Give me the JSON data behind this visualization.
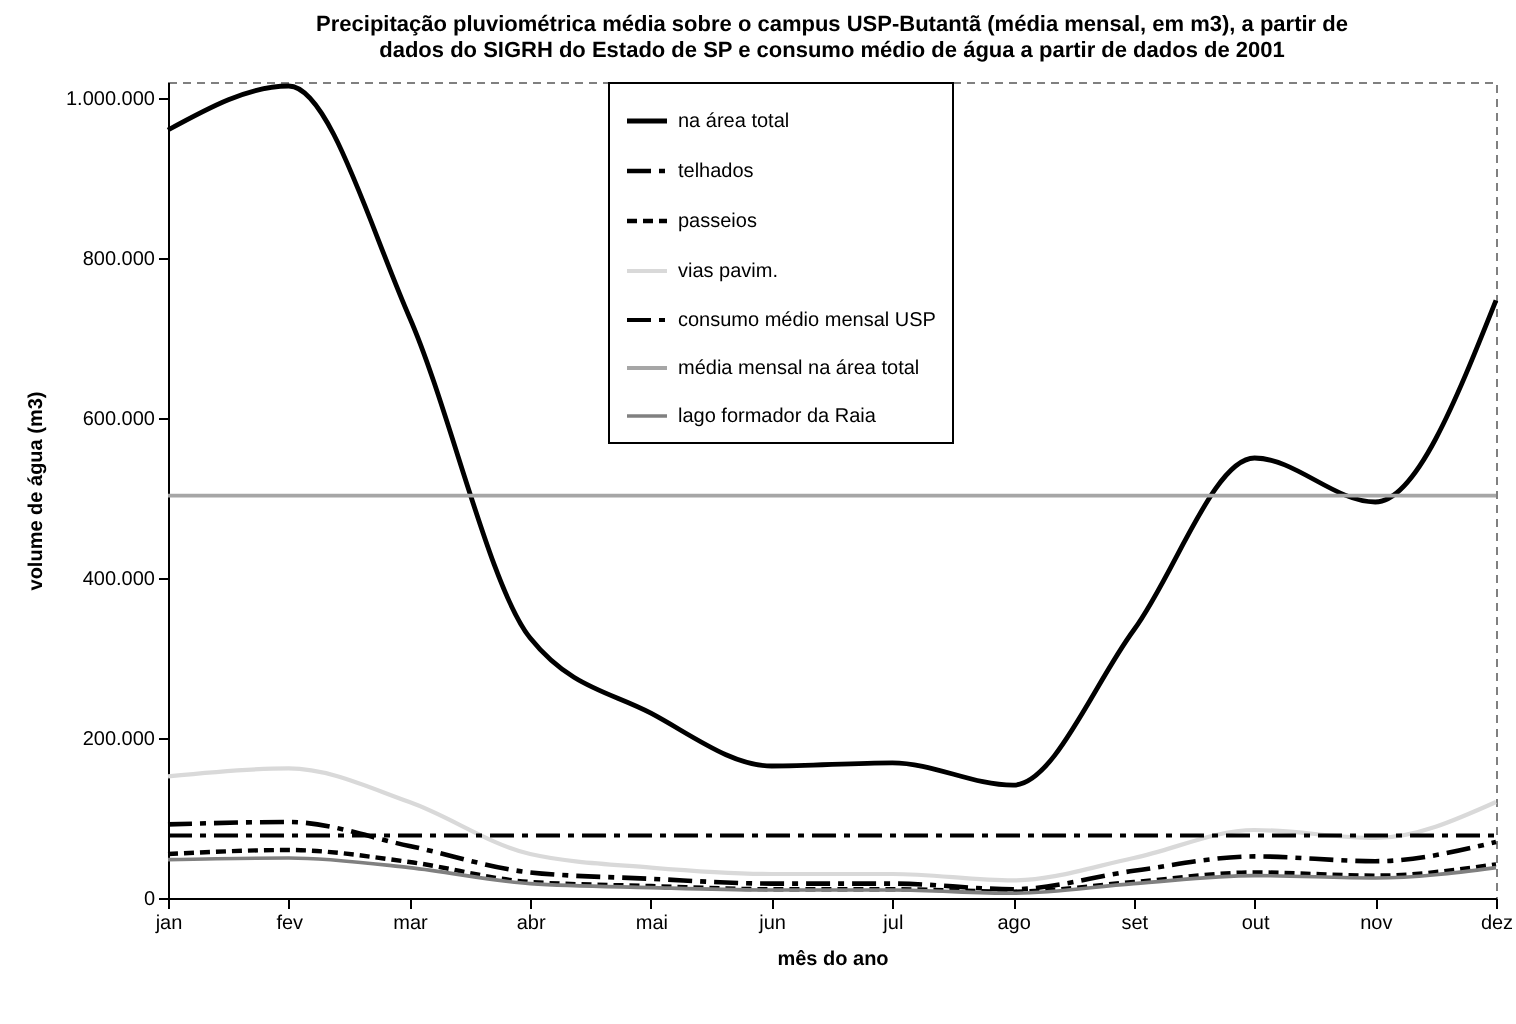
{
  "chart_data": {
    "type": "line",
    "title": "Precipitação pluviométrica média sobre o campus USP-Butantã (média mensal, em m3), a partir de dados do SIGRH do Estado de SP e consumo médio de água a partir de dados de 2001",
    "xlabel": "mês do ano",
    "ylabel": "volume de água (m3)",
    "categories": [
      "jan",
      "fev",
      "mar",
      "abr",
      "mai",
      "jun",
      "jul",
      "ago",
      "set",
      "out",
      "nov",
      "dez"
    ],
    "ylim": [
      0,
      1020000
    ],
    "yticks": [
      {
        "value": 0,
        "label": "0"
      },
      {
        "value": 200000,
        "label": "200.000"
      },
      {
        "value": 400000,
        "label": "400.000"
      },
      {
        "value": 600000,
        "label": "600.000"
      },
      {
        "value": 800000,
        "label": "800.000"
      },
      {
        "value": 1000000,
        "label": "1.000.000"
      }
    ],
    "grid": false,
    "legend": "top",
    "marker": "none",
    "series": [
      {
        "name": "na área total",
        "color": "#000000",
        "line_style": "solid",
        "values": [
          960000,
          1015000,
          726000,
          325000,
          231000,
          165000,
          169000,
          141000,
          335000,
          550000,
          495000,
          747000
        ]
      },
      {
        "name": "telhados",
        "color": "#000000",
        "line_style": "dashdot",
        "values": [
          92000,
          95000,
          65000,
          32000,
          24000,
          18000,
          18000,
          11000,
          34000,
          52000,
          46000,
          70000
        ]
      },
      {
        "name": "passeios",
        "color": "#000000",
        "line_style": "dashed",
        "values": [
          55000,
          60000,
          45000,
          20000,
          15000,
          11000,
          11000,
          8000,
          20000,
          32000,
          28000,
          42000
        ]
      },
      {
        "name": "vias pavim.",
        "color": "#d9d9d9",
        "line_style": "solid",
        "values": [
          152000,
          162000,
          120000,
          55000,
          38000,
          30000,
          30000,
          22000,
          50000,
          85000,
          75000,
          120000
        ]
      },
      {
        "name": "consumo médio mensal USP",
        "color": "#000000",
        "line_style": "dashdot",
        "values": [
          78000,
          78000,
          78000,
          78000,
          78000,
          78000,
          78000,
          78000,
          78000,
          78000,
          78000,
          78000
        ]
      },
      {
        "name": "média mensal na área total",
        "color": "#a6a6a6",
        "line_style": "solid",
        "values": [
          503000,
          503000,
          503000,
          503000,
          503000,
          503000,
          503000,
          503000,
          503000,
          503000,
          503000,
          503000
        ]
      },
      {
        "name": "lago formador da Raia",
        "color": "#808080",
        "line_style": "solid",
        "values": [
          48000,
          50000,
          38000,
          18000,
          13000,
          10000,
          10000,
          6000,
          18000,
          28000,
          25000,
          38000
        ]
      }
    ]
  }
}
